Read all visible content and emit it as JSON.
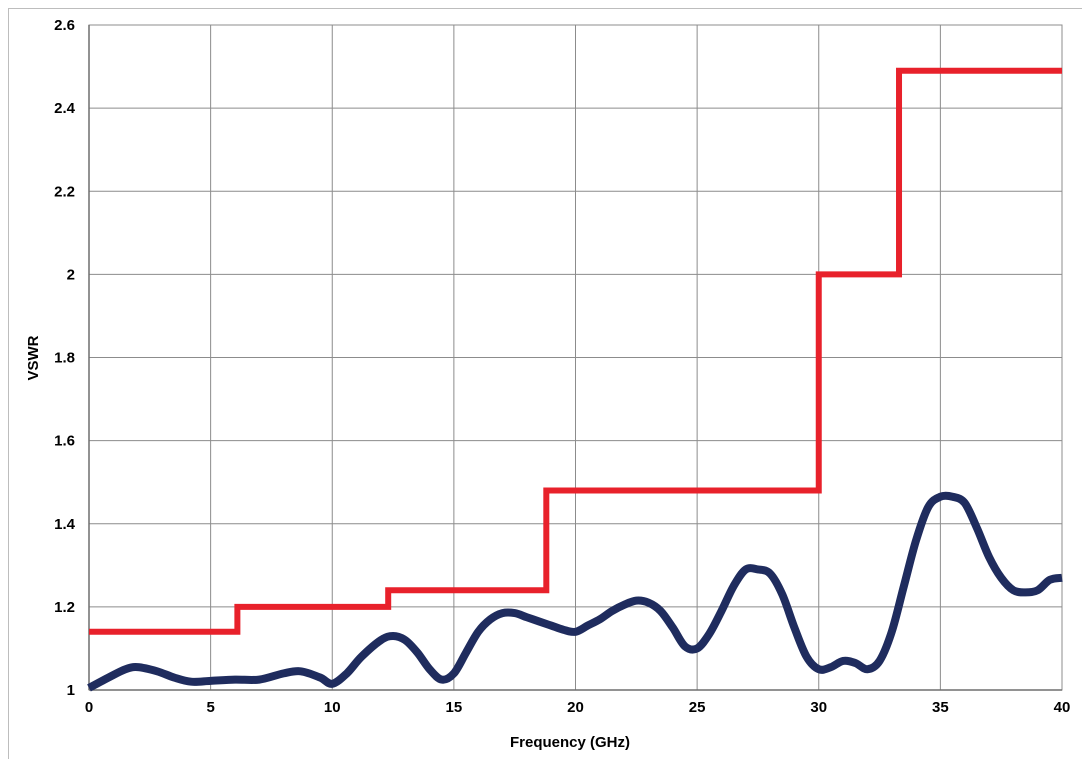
{
  "chart_data": {
    "type": "line",
    "title": "",
    "xlabel": "Frequency (GHz)",
    "ylabel": "VSWR",
    "xlim": [
      0,
      40
    ],
    "ylim": [
      1,
      2.6
    ],
    "x_ticks": [
      "0",
      "5",
      "10",
      "15",
      "20",
      "25",
      "30",
      "35",
      "40"
    ],
    "y_ticks": [
      "1",
      "1.2",
      "1.4",
      "1.6",
      "1.8",
      "2",
      "2.2",
      "2.4",
      "2.6"
    ],
    "grid": true,
    "legend": "none",
    "series": [
      {
        "color": "#e8212b",
        "style": "step",
        "x": [
          0,
          6.1,
          6.1,
          12.3,
          12.3,
          18.8,
          18.8,
          30.0,
          30.0,
          33.3,
          33.3,
          40.0
        ],
        "y": [
          1.14,
          1.14,
          1.2,
          1.2,
          1.24,
          1.24,
          1.48,
          1.48,
          2.0,
          2.0,
          2.49,
          2.49
        ]
      },
      {
        "color": "#1f2c5e",
        "style": "smooth",
        "x": [
          0,
          0.8,
          1.5,
          2.0,
          2.8,
          3.5,
          4.2,
          5.0,
          6.0,
          7.0,
          8.0,
          8.7,
          9.5,
          10.0,
          10.6,
          11.2,
          12.0,
          12.5,
          13.0,
          13.5,
          14.0,
          14.5,
          15.0,
          15.5,
          16.0,
          16.5,
          17.0,
          17.5,
          18.0,
          18.5,
          19.0,
          19.5,
          20.0,
          20.5,
          21.0,
          21.5,
          22.0,
          22.5,
          23.0,
          23.5,
          24.0,
          24.5,
          25.0,
          25.5,
          26.0,
          26.5,
          27.0,
          27.5,
          28.0,
          28.5,
          29.0,
          29.5,
          30.0,
          30.5,
          31.0,
          31.5,
          32.0,
          32.5,
          33.0,
          33.5,
          34.0,
          34.5,
          35.0,
          35.5,
          36.0,
          36.5,
          37.0,
          37.5,
          38.0,
          38.5,
          39.0,
          39.5,
          40.0
        ],
        "y": [
          1.005,
          1.03,
          1.05,
          1.055,
          1.045,
          1.03,
          1.02,
          1.022,
          1.025,
          1.025,
          1.04,
          1.045,
          1.03,
          1.015,
          1.04,
          1.08,
          1.12,
          1.13,
          1.12,
          1.09,
          1.05,
          1.025,
          1.04,
          1.09,
          1.14,
          1.17,
          1.185,
          1.185,
          1.175,
          1.165,
          1.155,
          1.145,
          1.14,
          1.155,
          1.17,
          1.19,
          1.205,
          1.215,
          1.21,
          1.19,
          1.15,
          1.105,
          1.1,
          1.135,
          1.19,
          1.25,
          1.29,
          1.29,
          1.28,
          1.23,
          1.15,
          1.08,
          1.05,
          1.055,
          1.07,
          1.065,
          1.05,
          1.07,
          1.14,
          1.25,
          1.36,
          1.44,
          1.465,
          1.465,
          1.45,
          1.39,
          1.32,
          1.27,
          1.24,
          1.235,
          1.24,
          1.265,
          1.27
        ]
      }
    ]
  }
}
